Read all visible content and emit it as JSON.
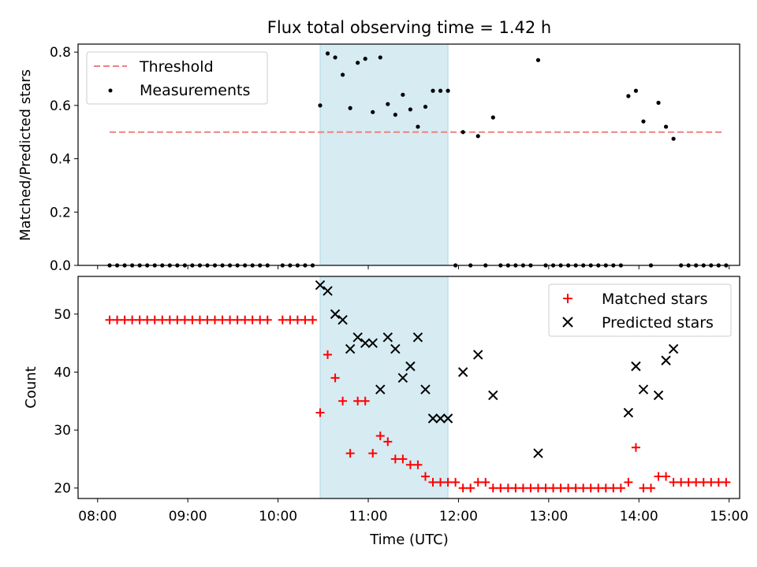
{
  "figure": {
    "title": "Flux total observing time = 1.42 h"
  },
  "colors": {
    "threshold": "#f08080",
    "measurement": "#000000",
    "matched": "#ff0000",
    "predicted": "#000000",
    "highlight": "#add8e6"
  },
  "chart_data": [
    {
      "type": "scatter",
      "panel": "top",
      "ylabel": "Matched/Predicted stars",
      "xlabel": "",
      "ylim": [
        0,
        0.83
      ],
      "yticks": [
        0.0,
        0.2,
        0.4,
        0.6,
        0.8
      ],
      "ytick_labels": [
        "0.0",
        "0.2",
        "0.4",
        "0.6",
        "0.8"
      ],
      "legend": {
        "placement": "top-left",
        "entries": [
          "Threshold",
          "Measurements"
        ]
      },
      "threshold": {
        "name": "Threshold",
        "y": 0.5,
        "x_start": "08:08",
        "x_end": "14:57",
        "style": "dashed"
      },
      "highlight_span": {
        "x_start": "10:28",
        "x_end": "11:53"
      },
      "series": [
        {
          "name": "Measurements",
          "marker": "dot",
          "points": [
            [
              "08:08",
              0
            ],
            [
              "08:13",
              0
            ],
            [
              "08:18",
              0
            ],
            [
              "08:23",
              0
            ],
            [
              "08:28",
              0
            ],
            [
              "08:33",
              0
            ],
            [
              "08:38",
              0
            ],
            [
              "08:43",
              0
            ],
            [
              "08:48",
              0
            ],
            [
              "08:53",
              0
            ],
            [
              "08:58",
              0
            ],
            [
              "09:03",
              0
            ],
            [
              "09:08",
              0
            ],
            [
              "09:13",
              0
            ],
            [
              "09:18",
              0
            ],
            [
              "09:23",
              0
            ],
            [
              "09:28",
              0
            ],
            [
              "09:33",
              0
            ],
            [
              "09:38",
              0
            ],
            [
              "09:43",
              0
            ],
            [
              "09:48",
              0
            ],
            [
              "09:53",
              0
            ],
            [
              "10:03",
              0
            ],
            [
              "10:08",
              0
            ],
            [
              "10:13",
              0
            ],
            [
              "10:18",
              0
            ],
            [
              "10:23",
              0
            ],
            [
              "10:28",
              0.6
            ],
            [
              "10:33",
              0.795
            ],
            [
              "10:38",
              0.78
            ],
            [
              "10:43",
              0.715
            ],
            [
              "10:48",
              0.59
            ],
            [
              "10:53",
              0.76
            ],
            [
              "10:58",
              0.775
            ],
            [
              "11:03",
              0.575
            ],
            [
              "11:08",
              0.78
            ],
            [
              "11:13",
              0.605
            ],
            [
              "11:18",
              0.565
            ],
            [
              "11:23",
              0.64
            ],
            [
              "11:28",
              0.585
            ],
            [
              "11:33",
              0.52
            ],
            [
              "11:38",
              0.595
            ],
            [
              "11:43",
              0.655
            ],
            [
              "11:48",
              0.655
            ],
            [
              "11:53",
              0.655
            ],
            [
              "11:58",
              0
            ],
            [
              "12:03",
              0.5
            ],
            [
              "12:08",
              0
            ],
            [
              "12:13",
              0.485
            ],
            [
              "12:18",
              0
            ],
            [
              "12:23",
              0.555
            ],
            [
              "12:28",
              0
            ],
            [
              "12:33",
              0
            ],
            [
              "12:38",
              0
            ],
            [
              "12:43",
              0
            ],
            [
              "12:48",
              0
            ],
            [
              "12:53",
              0.77
            ],
            [
              "12:58",
              0
            ],
            [
              "13:03",
              0
            ],
            [
              "13:08",
              0
            ],
            [
              "13:13",
              0
            ],
            [
              "13:18",
              0
            ],
            [
              "13:23",
              0
            ],
            [
              "13:28",
              0
            ],
            [
              "13:33",
              0
            ],
            [
              "13:38",
              0
            ],
            [
              "13:43",
              0
            ],
            [
              "13:48",
              0
            ],
            [
              "13:53",
              0.635
            ],
            [
              "13:58",
              0.655
            ],
            [
              "14:03",
              0.54
            ],
            [
              "14:08",
              0
            ],
            [
              "14:13",
              0.61
            ],
            [
              "14:18",
              0.52
            ],
            [
              "14:23",
              0.475
            ],
            [
              "14:28",
              0
            ],
            [
              "14:33",
              0
            ],
            [
              "14:38",
              0
            ],
            [
              "14:43",
              0
            ],
            [
              "14:48",
              0
            ],
            [
              "14:53",
              0
            ],
            [
              "14:58",
              0
            ]
          ]
        }
      ]
    },
    {
      "type": "scatter",
      "panel": "bottom",
      "ylabel": "Count",
      "xlabel": "Time (UTC)",
      "ylim": [
        18.2,
        56.5
      ],
      "yticks": [
        20,
        30,
        40,
        50
      ],
      "ytick_labels": [
        "20",
        "30",
        "40",
        "50"
      ],
      "xlim": [
        "07:47",
        "15:07"
      ],
      "xticks": [
        "08:00",
        "09:00",
        "10:00",
        "11:00",
        "12:00",
        "13:00",
        "14:00",
        "15:00"
      ],
      "legend": {
        "placement": "top-right",
        "entries": [
          "Matched stars",
          "Predicted stars"
        ]
      },
      "highlight_span": {
        "x_start": "10:28",
        "x_end": "11:53"
      },
      "series": [
        {
          "name": "Matched stars",
          "marker": "plus",
          "points": [
            [
              "08:08",
              49
            ],
            [
              "08:13",
              49
            ],
            [
              "08:18",
              49
            ],
            [
              "08:23",
              49
            ],
            [
              "08:28",
              49
            ],
            [
              "08:33",
              49
            ],
            [
              "08:38",
              49
            ],
            [
              "08:43",
              49
            ],
            [
              "08:48",
              49
            ],
            [
              "08:53",
              49
            ],
            [
              "08:58",
              49
            ],
            [
              "09:03",
              49
            ],
            [
              "09:08",
              49
            ],
            [
              "09:13",
              49
            ],
            [
              "09:18",
              49
            ],
            [
              "09:23",
              49
            ],
            [
              "09:28",
              49
            ],
            [
              "09:33",
              49
            ],
            [
              "09:38",
              49
            ],
            [
              "09:43",
              49
            ],
            [
              "09:48",
              49
            ],
            [
              "09:53",
              49
            ],
            [
              "10:03",
              49
            ],
            [
              "10:08",
              49
            ],
            [
              "10:13",
              49
            ],
            [
              "10:18",
              49
            ],
            [
              "10:23",
              49
            ],
            [
              "10:28",
              33
            ],
            [
              "10:33",
              43
            ],
            [
              "10:38",
              39
            ],
            [
              "10:43",
              35
            ],
            [
              "10:48",
              26
            ],
            [
              "10:53",
              35
            ],
            [
              "10:58",
              35
            ],
            [
              "11:03",
              26
            ],
            [
              "11:08",
              29
            ],
            [
              "11:13",
              28
            ],
            [
              "11:18",
              25
            ],
            [
              "11:23",
              25
            ],
            [
              "11:28",
              24
            ],
            [
              "11:33",
              24
            ],
            [
              "11:38",
              22
            ],
            [
              "11:43",
              21
            ],
            [
              "11:48",
              21
            ],
            [
              "11:53",
              21
            ],
            [
              "11:58",
              21
            ],
            [
              "12:03",
              20
            ],
            [
              "12:08",
              20
            ],
            [
              "12:13",
              21
            ],
            [
              "12:18",
              21
            ],
            [
              "12:23",
              20
            ],
            [
              "12:28",
              20
            ],
            [
              "12:33",
              20
            ],
            [
              "12:38",
              20
            ],
            [
              "12:43",
              20
            ],
            [
              "12:48",
              20
            ],
            [
              "12:53",
              20
            ],
            [
              "12:58",
              20
            ],
            [
              "13:03",
              20
            ],
            [
              "13:08",
              20
            ],
            [
              "13:13",
              20
            ],
            [
              "13:18",
              20
            ],
            [
              "13:23",
              20
            ],
            [
              "13:28",
              20
            ],
            [
              "13:33",
              20
            ],
            [
              "13:38",
              20
            ],
            [
              "13:43",
              20
            ],
            [
              "13:48",
              20
            ],
            [
              "13:53",
              21
            ],
            [
              "13:58",
              27
            ],
            [
              "14:03",
              20
            ],
            [
              "14:08",
              20
            ],
            [
              "14:13",
              22
            ],
            [
              "14:18",
              22
            ],
            [
              "14:23",
              21
            ],
            [
              "14:28",
              21
            ],
            [
              "14:33",
              21
            ],
            [
              "14:38",
              21
            ],
            [
              "14:43",
              21
            ],
            [
              "14:48",
              21
            ],
            [
              "14:53",
              21
            ],
            [
              "14:58",
              21
            ]
          ]
        },
        {
          "name": "Predicted stars",
          "marker": "x",
          "points": [
            [
              "10:28",
              55
            ],
            [
              "10:33",
              54
            ],
            [
              "10:38",
              50
            ],
            [
              "10:43",
              49
            ],
            [
              "10:48",
              44
            ],
            [
              "10:53",
              46
            ],
            [
              "10:58",
              45
            ],
            [
              "11:03",
              45
            ],
            [
              "11:08",
              37
            ],
            [
              "11:13",
              46
            ],
            [
              "11:18",
              44
            ],
            [
              "11:23",
              39
            ],
            [
              "11:28",
              41
            ],
            [
              "11:33",
              46
            ],
            [
              "11:38",
              37
            ],
            [
              "11:43",
              32
            ],
            [
              "11:48",
              32
            ],
            [
              "11:53",
              32
            ],
            [
              "12:03",
              40
            ],
            [
              "12:13",
              43
            ],
            [
              "12:23",
              36
            ],
            [
              "12:53",
              26
            ],
            [
              "13:53",
              33
            ],
            [
              "13:58",
              41
            ],
            [
              "14:03",
              37
            ],
            [
              "14:13",
              36
            ],
            [
              "14:18",
              42
            ],
            [
              "14:23",
              44
            ]
          ]
        }
      ]
    }
  ]
}
